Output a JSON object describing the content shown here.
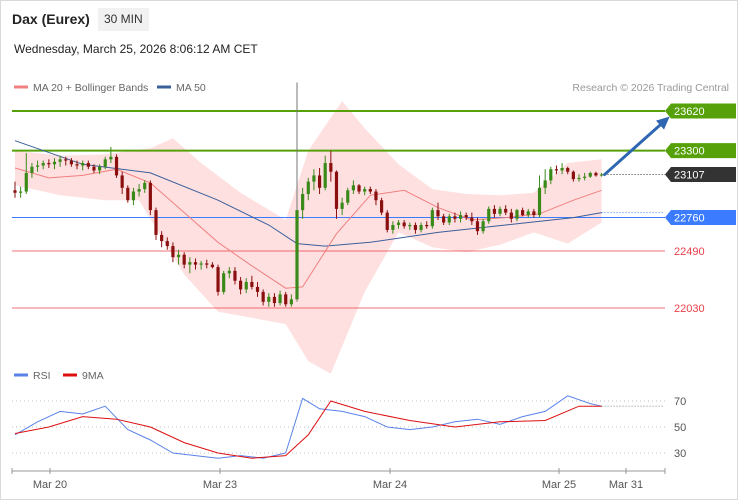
{
  "header": {
    "instrument": "Dax (Eurex)",
    "timeframe": "30 MIN",
    "datetime": "Wednesday, March 25, 2026 8:06:12 AM CET"
  },
  "copyright": "Research © 2026 Trading Central",
  "colors": {
    "ma20": "#f08080",
    "ma50": "#3a5f9a",
    "band": "#ffe0e0",
    "resistance": "#56a10a",
    "pivot": "#3a7bff",
    "support": "#e8404a",
    "last": "#333333",
    "rsi": "#5b82e8",
    "rsi_ma": "#dd1010",
    "arrow": "#2f66b1"
  },
  "chart_data": [
    {
      "type": "candlestick",
      "legend": [
        "MA 20 + Bollinger Bands",
        "MA 50"
      ],
      "legend_position": "top-left",
      "x_labels": [
        "Mar 20",
        "Mar 23",
        "Mar 24",
        "Mar 25",
        "Mar 31"
      ],
      "y_range": [
        21900,
        23900
      ],
      "levels": [
        {
          "value": 23620,
          "label": "23620",
          "kind": "resistance"
        },
        {
          "value": 23300,
          "label": "23300",
          "kind": "resistance"
        },
        {
          "value": 23107,
          "label": "23107",
          "kind": "last"
        },
        {
          "value": 22760,
          "label": "22760",
          "kind": "pivot"
        },
        {
          "value": 22490,
          "label": "22490",
          "kind": "support"
        },
        {
          "value": 22030,
          "label": "22030",
          "kind": "support"
        }
      ],
      "candles": [
        [
          22980,
          23050,
          22920,
          22960
        ],
        [
          22960,
          23010,
          22920,
          22970
        ],
        [
          22970,
          23280,
          22950,
          23120
        ],
        [
          23120,
          23200,
          23080,
          23170
        ],
        [
          23170,
          23220,
          23130,
          23180
        ],
        [
          23180,
          23220,
          23150,
          23200
        ],
        [
          23200,
          23230,
          23160,
          23190
        ],
        [
          23190,
          23240,
          23150,
          23210
        ],
        [
          23210,
          23260,
          23170,
          23230
        ],
        [
          23230,
          23250,
          23180,
          23220
        ],
        [
          23220,
          23240,
          23170,
          23190
        ],
        [
          23190,
          23220,
          23150,
          23180
        ],
        [
          23180,
          23220,
          23140,
          23200
        ],
        [
          23200,
          23220,
          23150,
          23170
        ],
        [
          23170,
          23190,
          23120,
          23140
        ],
        [
          23140,
          23190,
          23110,
          23170
        ],
        [
          23170,
          23250,
          23150,
          23230
        ],
        [
          23230,
          23330,
          23200,
          23250
        ],
        [
          23250,
          23270,
          23080,
          23100
        ],
        [
          23100,
          23130,
          22950,
          23000
        ],
        [
          23000,
          23020,
          22880,
          22900
        ],
        [
          22900,
          23000,
          22860,
          22970
        ],
        [
          22970,
          23030,
          22930,
          22990
        ],
        [
          22990,
          23060,
          22960,
          23040
        ],
        [
          23040,
          23060,
          22780,
          22820
        ],
        [
          22820,
          22840,
          22580,
          22620
        ],
        [
          22620,
          22650,
          22520,
          22570
        ],
        [
          22570,
          22600,
          22500,
          22530
        ],
        [
          22530,
          22560,
          22400,
          22440
        ],
        [
          22440,
          22500,
          22380,
          22460
        ],
        [
          22460,
          22480,
          22350,
          22380
        ],
        [
          22380,
          22440,
          22310,
          22400
        ],
        [
          22400,
          22430,
          22340,
          22380
        ],
        [
          22380,
          22410,
          22340,
          22390
        ],
        [
          22390,
          22420,
          22350,
          22380
        ],
        [
          22380,
          22400,
          22350,
          22360
        ],
        [
          22360,
          22380,
          22130,
          22160
        ],
        [
          22160,
          22330,
          22140,
          22310
        ],
        [
          22310,
          22360,
          22270,
          22330
        ],
        [
          22330,
          22360,
          22220,
          22250
        ],
        [
          22250,
          22280,
          22140,
          22180
        ],
        [
          22180,
          22270,
          22150,
          22240
        ],
        [
          22240,
          22290,
          22180,
          22200
        ],
        [
          22200,
          22240,
          22120,
          22160
        ],
        [
          22160,
          22180,
          22050,
          22080
        ],
        [
          22080,
          22150,
          22040,
          22120
        ],
        [
          22120,
          22150,
          22040,
          22070
        ],
        [
          22070,
          22170,
          22050,
          22140
        ],
        [
          22140,
          22160,
          22040,
          22060
        ],
        [
          22060,
          22140,
          22040,
          22100
        ],
        [
          22100,
          23850,
          22080,
          22820
        ],
        [
          22820,
          23000,
          22750,
          22950
        ],
        [
          22950,
          23080,
          22900,
          23050
        ],
        [
          23050,
          23150,
          22980,
          23100
        ],
        [
          23100,
          23160,
          22950,
          23000
        ],
        [
          23000,
          23260,
          22980,
          23200
        ],
        [
          23200,
          23300,
          23050,
          23130
        ],
        [
          23130,
          23140,
          22750,
          22830
        ],
        [
          22830,
          22920,
          22780,
          22880
        ],
        [
          22880,
          23000,
          22860,
          22980
        ],
        [
          22980,
          23060,
          22950,
          23020
        ],
        [
          23020,
          23030,
          22950,
          22970
        ],
        [
          22970,
          23010,
          22940,
          22990
        ],
        [
          22990,
          23010,
          22950,
          22970
        ],
        [
          22970,
          22990,
          22860,
          22900
        ],
        [
          22900,
          22920,
          22780,
          22800
        ],
        [
          22800,
          22820,
          22640,
          22660
        ],
        [
          22660,
          22730,
          22630,
          22700
        ],
        [
          22700,
          22740,
          22670,
          22720
        ],
        [
          22720,
          22740,
          22670,
          22690
        ],
        [
          22690,
          22720,
          22660,
          22700
        ],
        [
          22700,
          22720,
          22630,
          22660
        ],
        [
          22660,
          22720,
          22640,
          22700
        ],
        [
          22700,
          22730,
          22670,
          22690
        ],
        [
          22690,
          22840,
          22670,
          22820
        ],
        [
          22820,
          22880,
          22740,
          22770
        ],
        [
          22770,
          22790,
          22700,
          22720
        ],
        [
          22720,
          22790,
          22700,
          22770
        ],
        [
          22770,
          22800,
          22720,
          22750
        ],
        [
          22750,
          22810,
          22720,
          22780
        ],
        [
          22780,
          22800,
          22740,
          22760
        ],
        [
          22760,
          22800,
          22700,
          22730
        ],
        [
          22730,
          22760,
          22620,
          22650
        ],
        [
          22650,
          22750,
          22630,
          22730
        ],
        [
          22730,
          22850,
          22710,
          22830
        ],
        [
          22830,
          22860,
          22760,
          22790
        ],
        [
          22790,
          22850,
          22770,
          22830
        ],
        [
          22830,
          22860,
          22780,
          22800
        ],
        [
          22800,
          22830,
          22720,
          22750
        ],
        [
          22750,
          22830,
          22730,
          22820
        ],
        [
          22820,
          22840,
          22770,
          22780
        ],
        [
          22780,
          22830,
          22760,
          22810
        ],
        [
          22810,
          22830,
          22760,
          22780
        ],
        [
          22780,
          23100,
          22760,
          23000
        ],
        [
          23000,
          23150,
          22950,
          23060
        ],
        [
          23060,
          23170,
          23030,
          23150
        ],
        [
          23150,
          23180,
          23110,
          23140
        ],
        [
          23140,
          23200,
          23110,
          23160
        ],
        [
          23160,
          23170,
          23110,
          23130
        ],
        [
          23130,
          23140,
          23050,
          23070
        ],
        [
          23070,
          23110,
          23050,
          23080
        ],
        [
          23080,
          23120,
          23060,
          23090
        ],
        [
          23090,
          23130,
          23080,
          23120
        ],
        [
          23120,
          23130,
          23090,
          23100
        ],
        [
          23100,
          23120,
          23090,
          23107
        ]
      ],
      "ma20": [
        [
          0,
          23160
        ],
        [
          6,
          23080
        ],
        [
          12,
          23100
        ],
        [
          18,
          23150
        ],
        [
          24,
          23040
        ],
        [
          30,
          22800
        ],
        [
          36,
          22560
        ],
        [
          42,
          22370
        ],
        [
          48,
          22190
        ],
        [
          51,
          22200
        ],
        [
          57,
          22630
        ],
        [
          63,
          22940
        ],
        [
          69,
          22980
        ],
        [
          75,
          22840
        ],
        [
          81,
          22740
        ],
        [
          87,
          22760
        ],
        [
          93,
          22790
        ],
        [
          99,
          22900
        ],
        [
          104,
          22980
        ]
      ],
      "ma50": [
        [
          0,
          23380
        ],
        [
          12,
          23190
        ],
        [
          24,
          23120
        ],
        [
          36,
          22900
        ],
        [
          45,
          22700
        ],
        [
          50,
          22550
        ],
        [
          55,
          22530
        ],
        [
          63,
          22560
        ],
        [
          75,
          22640
        ],
        [
          87,
          22700
        ],
        [
          99,
          22760
        ],
        [
          104,
          22800
        ]
      ],
      "bb_upper": [
        [
          0,
          23300
        ],
        [
          8,
          23260
        ],
        [
          16,
          23270
        ],
        [
          24,
          23320
        ],
        [
          28,
          23400
        ],
        [
          33,
          23200
        ],
        [
          40,
          22960
        ],
        [
          48,
          22740
        ],
        [
          52,
          23300
        ],
        [
          58,
          23700
        ],
        [
          62,
          23480
        ],
        [
          68,
          23190
        ],
        [
          74,
          22990
        ],
        [
          80,
          22950
        ],
        [
          86,
          22940
        ],
        [
          92,
          22960
        ],
        [
          98,
          23200
        ],
        [
          104,
          23230
        ]
      ],
      "bb_lower": [
        [
          0,
          23020
        ],
        [
          8,
          22940
        ],
        [
          16,
          22900
        ],
        [
          22,
          22900
        ],
        [
          30,
          22300
        ],
        [
          36,
          22000
        ],
        [
          42,
          21950
        ],
        [
          48,
          21900
        ],
        [
          52,
          21600
        ],
        [
          56,
          21500
        ],
        [
          62,
          22160
        ],
        [
          68,
          22640
        ],
        [
          74,
          22520
        ],
        [
          80,
          22480
        ],
        [
          86,
          22540
        ],
        [
          92,
          22640
        ],
        [
          98,
          22550
        ],
        [
          104,
          22720
        ]
      ],
      "forecast": {
        "from": [
          104,
          23107
        ],
        "to": [
          116,
          23560
        ]
      }
    },
    {
      "type": "line",
      "legend": [
        "RSI",
        "9MA"
      ],
      "y_levels": [
        70,
        50,
        30
      ],
      "y_range": [
        20,
        82
      ],
      "series": [
        {
          "name": "RSI",
          "values": [
            [
              0,
              44
            ],
            [
              4,
              54
            ],
            [
              8,
              62
            ],
            [
              12,
              60
            ],
            [
              16,
              66
            ],
            [
              20,
              48
            ],
            [
              24,
              40
            ],
            [
              28,
              30
            ],
            [
              32,
              28
            ],
            [
              36,
              26
            ],
            [
              40,
              28
            ],
            [
              44,
              26
            ],
            [
              48,
              30
            ],
            [
              51,
              72
            ],
            [
              54,
              64
            ],
            [
              58,
              62
            ],
            [
              62,
              58
            ],
            [
              66,
              50
            ],
            [
              70,
              48
            ],
            [
              74,
              50
            ],
            [
              78,
              54
            ],
            [
              82,
              56
            ],
            [
              86,
              52
            ],
            [
              90,
              58
            ],
            [
              94,
              62
            ],
            [
              98,
              74
            ],
            [
              102,
              68
            ],
            [
              104,
              66
            ]
          ]
        },
        {
          "name": "9MA",
          "values": [
            [
              0,
              45
            ],
            [
              6,
              50
            ],
            [
              12,
              58
            ],
            [
              18,
              56
            ],
            [
              24,
              50
            ],
            [
              30,
              38
            ],
            [
              36,
              30
            ],
            [
              42,
              26
            ],
            [
              48,
              28
            ],
            [
              52,
              44
            ],
            [
              56,
              70
            ],
            [
              62,
              62
            ],
            [
              70,
              55
            ],
            [
              78,
              50
            ],
            [
              86,
              54
            ],
            [
              94,
              55
            ],
            [
              100,
              66
            ],
            [
              104,
              66
            ]
          ]
        }
      ]
    }
  ]
}
